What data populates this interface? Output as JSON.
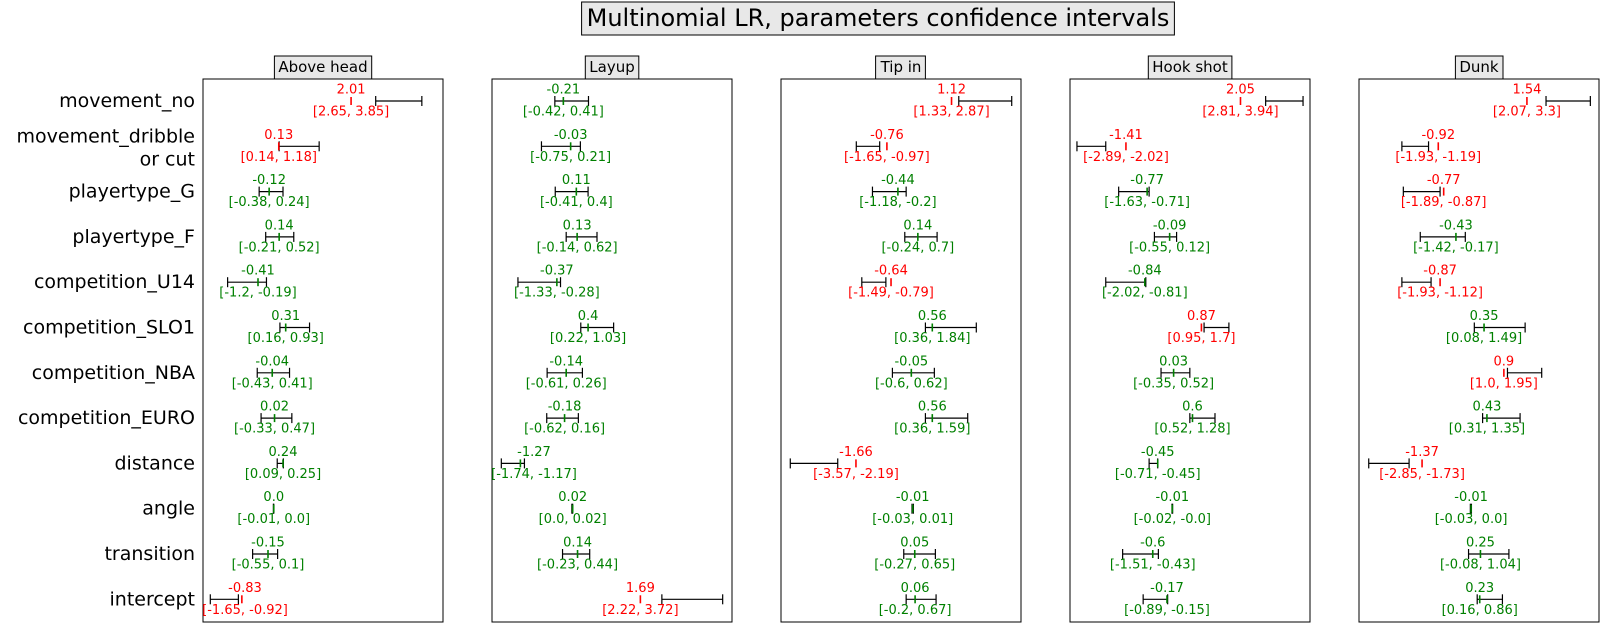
{
  "title": "Multinomial LR, parameters confidence intervals",
  "chart_data": {
    "type": "errorbar",
    "title": "Multinomial LR, parameters confidence intervals",
    "parameters": [
      "movement_no",
      "movement_dribble\nor cut",
      "playertype_G",
      "playertype_F",
      "competition_U14",
      "competition_SLO1",
      "competition_NBA",
      "competition_EURO",
      "distance",
      "angle",
      "transition",
      "intercept"
    ],
    "colors": {
      "significant": "#008000",
      "not_significant": "#ff0000",
      "bar": "#000000"
    },
    "panels": [
      {
        "name": "Above head",
        "xlim": [
          -1.84,
          4.4
        ],
        "entries": [
          {
            "coef": 2.01,
            "label": "2.01",
            "ci": [
              2.65,
              3.85
            ],
            "ci_label": "[2.65, 3.85]",
            "color": "#ff0000"
          },
          {
            "coef": 0.13,
            "label": "0.13",
            "ci": [
              0.14,
              1.18
            ],
            "ci_label": "[0.14, 1.18]",
            "color": "#ff0000"
          },
          {
            "coef": -0.12,
            "label": "-0.12",
            "ci": [
              -0.38,
              0.24
            ],
            "ci_label": "[-0.38, 0.24]",
            "color": "#008000"
          },
          {
            "coef": 0.14,
            "label": "0.14",
            "ci": [
              -0.21,
              0.52
            ],
            "ci_label": "[-0.21, 0.52]",
            "color": "#008000"
          },
          {
            "coef": -0.41,
            "label": "-0.41",
            "ci": [
              -1.2,
              -0.19
            ],
            "ci_label": "[-1.2, -0.19]",
            "color": "#008000"
          },
          {
            "coef": 0.31,
            "label": "0.31",
            "ci": [
              0.16,
              0.93
            ],
            "ci_label": "[0.16, 0.93]",
            "color": "#008000"
          },
          {
            "coef": -0.04,
            "label": "-0.04",
            "ci": [
              -0.43,
              0.41
            ],
            "ci_label": "[-0.43, 0.41]",
            "color": "#008000"
          },
          {
            "coef": 0.02,
            "label": "0.02",
            "ci": [
              -0.33,
              0.47
            ],
            "ci_label": "[-0.33, 0.47]",
            "color": "#008000"
          },
          {
            "coef": 0.24,
            "label": "0.24",
            "ci": [
              0.09,
              0.25
            ],
            "ci_label": "[0.09, 0.25]",
            "color": "#008000"
          },
          {
            "coef": 0.0,
            "label": "0.0",
            "ci": [
              -0.01,
              0.0
            ],
            "ci_label": "[-0.01, 0.0]",
            "color": "#008000"
          },
          {
            "coef": -0.15,
            "label": "-0.15",
            "ci": [
              -0.55,
              0.1
            ],
            "ci_label": "[-0.55, 0.1]",
            "color": "#008000"
          },
          {
            "coef": -0.83,
            "label": "-0.83",
            "ci": [
              -1.65,
              -0.92
            ],
            "ci_label": "[-1.65, -0.92]",
            "color": "#ff0000"
          }
        ]
      },
      {
        "name": "Layup",
        "xlim": [
          -1.97,
          3.95
        ],
        "entries": [
          {
            "coef": -0.21,
            "label": "-0.21",
            "ci": [
              -0.42,
              0.41
            ],
            "ci_label": "[-0.42, 0.41]",
            "color": "#008000"
          },
          {
            "coef": -0.03,
            "label": "-0.03",
            "ci": [
              -0.75,
              0.21
            ],
            "ci_label": "[-0.75, 0.21]",
            "color": "#008000"
          },
          {
            "coef": 0.11,
            "label": "0.11",
            "ci": [
              -0.41,
              0.4
            ],
            "ci_label": "[-0.41, 0.4]",
            "color": "#008000"
          },
          {
            "coef": 0.13,
            "label": "0.13",
            "ci": [
              -0.14,
              0.62
            ],
            "ci_label": "[-0.14, 0.62]",
            "color": "#008000"
          },
          {
            "coef": -0.37,
            "label": "-0.37",
            "ci": [
              -1.33,
              -0.28
            ],
            "ci_label": "[-1.33, -0.28]",
            "color": "#008000"
          },
          {
            "coef": 0.4,
            "label": "0.4",
            "ci": [
              0.22,
              1.03
            ],
            "ci_label": "[0.22, 1.03]",
            "color": "#008000"
          },
          {
            "coef": -0.14,
            "label": "-0.14",
            "ci": [
              -0.61,
              0.26
            ],
            "ci_label": "[-0.61, 0.26]",
            "color": "#008000"
          },
          {
            "coef": -0.18,
            "label": "-0.18",
            "ci": [
              -0.62,
              0.16
            ],
            "ci_label": "[-0.62, 0.16]",
            "color": "#008000"
          },
          {
            "coef": -1.27,
            "label": "-1.27",
            "ci": [
              -1.74,
              -1.17
            ],
            "ci_label": "[-1.74, -1.17]",
            "color": "#008000"
          },
          {
            "coef": 0.02,
            "label": "0.02",
            "ci": [
              0.0,
              0.02
            ],
            "ci_label": "[0.0, 0.02]",
            "color": "#008000"
          },
          {
            "coef": 0.14,
            "label": "0.14",
            "ci": [
              -0.23,
              0.44
            ],
            "ci_label": "[-0.23, 0.44]",
            "color": "#008000"
          },
          {
            "coef": 1.69,
            "label": "1.69",
            "ci": [
              2.22,
              3.72
            ],
            "ci_label": "[2.22, 3.72]",
            "color": "#ff0000"
          }
        ]
      },
      {
        "name": "Tip in",
        "xlim": [
          -3.84,
          3.14
        ],
        "entries": [
          {
            "coef": 1.12,
            "label": "1.12",
            "ci": [
              1.33,
              2.87
            ],
            "ci_label": "[1.33, 2.87]",
            "color": "#ff0000"
          },
          {
            "coef": -0.76,
            "label": "-0.76",
            "ci": [
              -1.65,
              -0.97
            ],
            "ci_label": "[-1.65, -0.97]",
            "color": "#ff0000"
          },
          {
            "coef": -0.44,
            "label": "-0.44",
            "ci": [
              -1.18,
              -0.2
            ],
            "ci_label": "[-1.18, -0.2]",
            "color": "#008000"
          },
          {
            "coef": 0.14,
            "label": "0.14",
            "ci": [
              -0.24,
              0.7
            ],
            "ci_label": "[-0.24, 0.7]",
            "color": "#008000"
          },
          {
            "coef": -0.64,
            "label": "-0.64",
            "ci": [
              -1.49,
              -0.79
            ],
            "ci_label": "[-1.49, -0.79]",
            "color": "#ff0000"
          },
          {
            "coef": 0.56,
            "label": "0.56",
            "ci": [
              0.36,
              1.84
            ],
            "ci_label": "[0.36, 1.84]",
            "color": "#008000"
          },
          {
            "coef": -0.05,
            "label": "-0.05",
            "ci": [
              -0.6,
              0.62
            ],
            "ci_label": "[-0.6, 0.62]",
            "color": "#008000"
          },
          {
            "coef": 0.56,
            "label": "0.56",
            "ci": [
              0.36,
              1.59
            ],
            "ci_label": "[0.36, 1.59]",
            "color": "#008000"
          },
          {
            "coef": -1.66,
            "label": "-1.66",
            "ci": [
              -3.57,
              -2.19
            ],
            "ci_label": "[-3.57, -2.19]",
            "color": "#ff0000"
          },
          {
            "coef": -0.01,
            "label": "-0.01",
            "ci": [
              -0.03,
              0.01
            ],
            "ci_label": "[-0.03, 0.01]",
            "color": "#008000"
          },
          {
            "coef": 0.05,
            "label": "0.05",
            "ci": [
              -0.27,
              0.65
            ],
            "ci_label": "[-0.27, 0.65]",
            "color": "#008000"
          },
          {
            "coef": 0.06,
            "label": "0.06",
            "ci": [
              -0.2,
              0.67
            ],
            "ci_label": "[-0.2, 0.67]",
            "color": "#008000"
          }
        ]
      },
      {
        "name": "Hook shot",
        "xlim": [
          -3.1,
          4.15
        ],
        "entries": [
          {
            "coef": 2.05,
            "label": "2.05",
            "ci": [
              2.81,
              3.94
            ],
            "ci_label": "[2.81, 3.94]",
            "color": "#ff0000"
          },
          {
            "coef": -1.41,
            "label": "-1.41",
            "ci": [
              -2.89,
              -2.02
            ],
            "ci_label": "[-2.89, -2.02]",
            "color": "#ff0000"
          },
          {
            "coef": -0.77,
            "label": "-0.77",
            "ci": [
              -1.63,
              -0.71
            ],
            "ci_label": "[-1.63, -0.71]",
            "color": "#008000"
          },
          {
            "coef": -0.09,
            "label": "-0.09",
            "ci": [
              -0.55,
              0.12
            ],
            "ci_label": "[-0.55, 0.12]",
            "color": "#008000"
          },
          {
            "coef": -0.84,
            "label": "-0.84",
            "ci": [
              -2.02,
              -0.81
            ],
            "ci_label": "[-2.02, -0.81]",
            "color": "#008000"
          },
          {
            "coef": 0.87,
            "label": "0.87",
            "ci": [
              0.95,
              1.7
            ],
            "ci_label": "[0.95, 1.7]",
            "color": "#ff0000"
          },
          {
            "coef": 0.03,
            "label": "0.03",
            "ci": [
              -0.35,
              0.52
            ],
            "ci_label": "[-0.35, 0.52]",
            "color": "#008000"
          },
          {
            "coef": 0.6,
            "label": "0.6",
            "ci": [
              0.52,
              1.28
            ],
            "ci_label": "[0.52, 1.28]",
            "color": "#008000"
          },
          {
            "coef": -0.45,
            "label": "-0.45",
            "ci": [
              -0.71,
              -0.45
            ],
            "ci_label": "[-0.71, -0.45]",
            "color": "#008000"
          },
          {
            "coef": -0.01,
            "label": "-0.01",
            "ci": [
              -0.02,
              -0.0
            ],
            "ci_label": "[-0.02, -0.0]",
            "color": "#008000"
          },
          {
            "coef": -0.6,
            "label": "-0.6",
            "ci": [
              -1.51,
              -0.43
            ],
            "ci_label": "[-1.51, -0.43]",
            "color": "#008000"
          },
          {
            "coef": -0.17,
            "label": "-0.17",
            "ci": [
              -0.89,
              -0.15
            ],
            "ci_label": "[-0.89, -0.15]",
            "color": "#008000"
          }
        ]
      },
      {
        "name": "Dunk",
        "xlim": [
          -3.12,
          3.54
        ],
        "entries": [
          {
            "coef": 1.54,
            "label": "1.54",
            "ci": [
              2.07,
              3.3
            ],
            "ci_label": "[2.07, 3.3]",
            "color": "#ff0000"
          },
          {
            "coef": -0.92,
            "label": "-0.92",
            "ci": [
              -1.93,
              -1.19
            ],
            "ci_label": "[-1.93, -1.19]",
            "color": "#ff0000"
          },
          {
            "coef": -0.77,
            "label": "-0.77",
            "ci": [
              -1.89,
              -0.87
            ],
            "ci_label": "[-1.89, -0.87]",
            "color": "#ff0000"
          },
          {
            "coef": -0.43,
            "label": "-0.43",
            "ci": [
              -1.42,
              -0.17
            ],
            "ci_label": "[-1.42, -0.17]",
            "color": "#008000"
          },
          {
            "coef": -0.87,
            "label": "-0.87",
            "ci": [
              -1.93,
              -1.12
            ],
            "ci_label": "[-1.93, -1.12]",
            "color": "#ff0000"
          },
          {
            "coef": 0.35,
            "label": "0.35",
            "ci": [
              0.08,
              1.49
            ],
            "ci_label": "[0.08, 1.49]",
            "color": "#008000"
          },
          {
            "coef": 0.9,
            "label": "0.9",
            "ci": [
              1.0,
              1.95
            ],
            "ci_label": "[1.0, 1.95]",
            "color": "#ff0000"
          },
          {
            "coef": 0.43,
            "label": "0.43",
            "ci": [
              0.31,
              1.35
            ],
            "ci_label": "[0.31, 1.35]",
            "color": "#008000"
          },
          {
            "coef": -1.37,
            "label": "-1.37",
            "ci": [
              -2.85,
              -1.73
            ],
            "ci_label": "[-2.85, -1.73]",
            "color": "#ff0000"
          },
          {
            "coef": -0.01,
            "label": "-0.01",
            "ci": [
              -0.03,
              0.0
            ],
            "ci_label": "[-0.03, 0.0]",
            "color": "#008000"
          },
          {
            "coef": 0.25,
            "label": "0.25",
            "ci": [
              -0.08,
              1.04
            ],
            "ci_label": "[-0.08, 1.04]",
            "color": "#008000"
          },
          {
            "coef": 0.23,
            "label": "0.23",
            "ci": [
              0.16,
              0.86
            ],
            "ci_label": "[0.16, 0.86]",
            "color": "#008000"
          }
        ]
      }
    ]
  }
}
